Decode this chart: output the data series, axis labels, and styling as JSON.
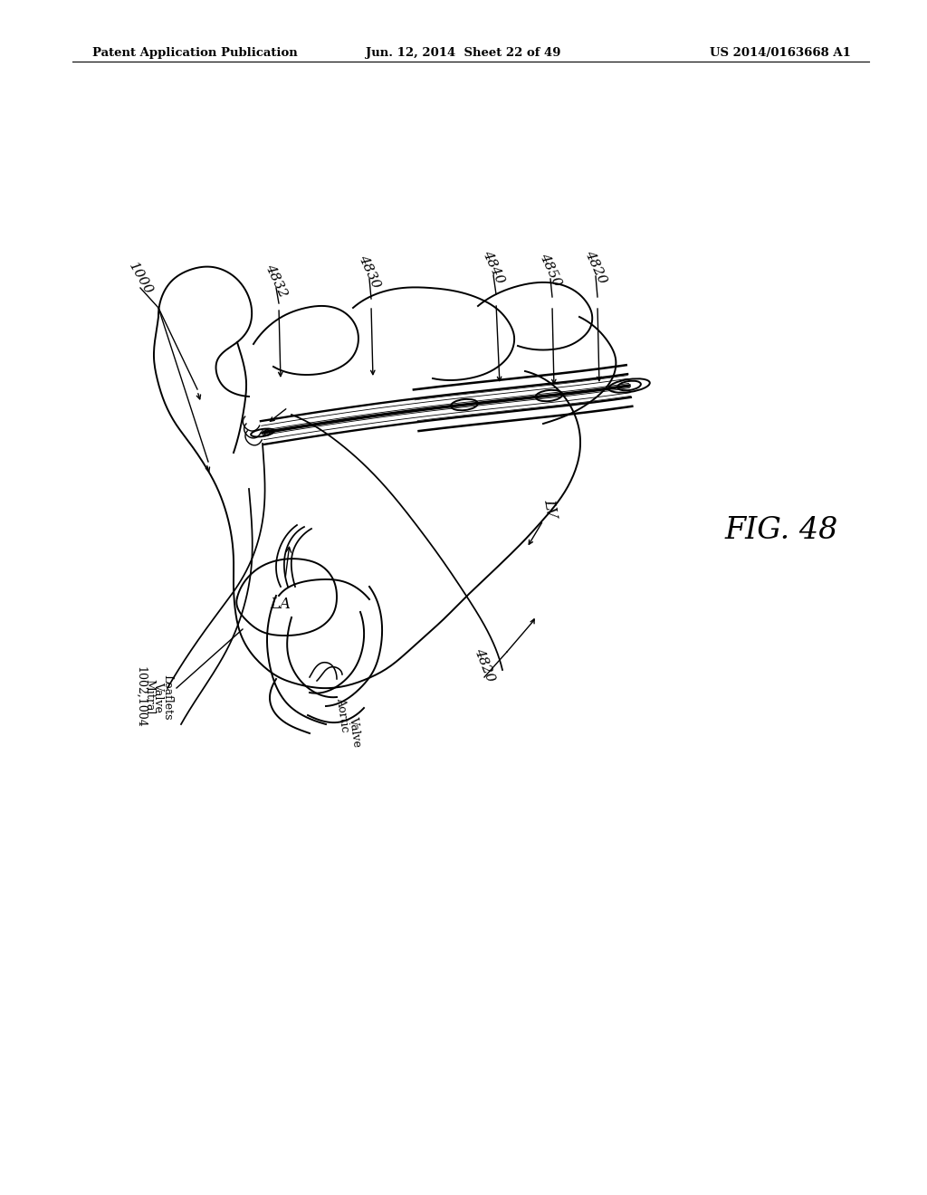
{
  "bg_color": "#ffffff",
  "header_left": "Patent Application Publication",
  "header_mid": "Jun. 12, 2014  Sheet 22 of 49",
  "header_right": "US 2014/0163668 A1",
  "fig_label": "FIG. 48"
}
